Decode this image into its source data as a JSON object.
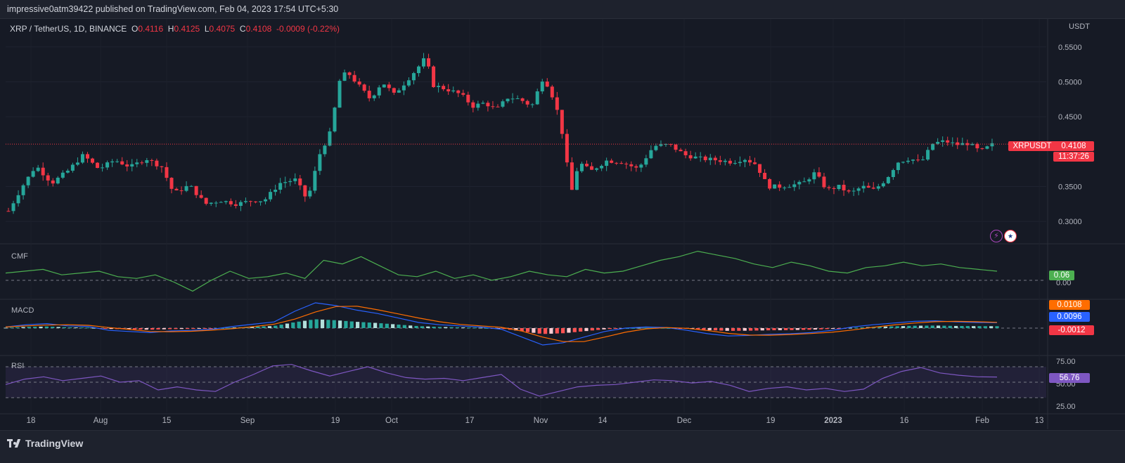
{
  "header": {
    "published": "impressive0atm39422 published on TradingView.com, Feb 04, 2023 17:54 UTC+5:30"
  },
  "legend": {
    "symbol": "XRP / TetherUS, 1D, BINANCE",
    "open_label": "O",
    "open": "0.4116",
    "high_label": "H",
    "high": "0.4125",
    "low_label": "L",
    "low": "0.4075",
    "close_label": "C",
    "close": "0.4108",
    "change": "-0.0009 (-0.22%)"
  },
  "price_axis": {
    "currency": "USDT",
    "ticks": [
      "0.5500",
      "0.5000",
      "0.4500",
      "0.3500",
      "0.3000"
    ]
  },
  "last_price": {
    "symbol": "XRPUSDT",
    "price": "0.4108",
    "countdown": "11:37:26"
  },
  "panes": {
    "cmf": {
      "label": "CMF",
      "value": "0.06",
      "zero": "0.00"
    },
    "macd": {
      "label": "MACD",
      "signal": "0.0108",
      "macd": "0.0096",
      "hist": "-0.0012"
    },
    "rsi": {
      "label": "RSI",
      "value": "56.76",
      "ticks": [
        "75.00",
        "50.00",
        "25.00"
      ]
    }
  },
  "time_axis": [
    "18",
    "Aug",
    "15",
    "Sep",
    "19",
    "Oct",
    "17",
    "Nov",
    "14",
    "Dec",
    "19",
    "2023",
    "16",
    "Feb",
    "13"
  ],
  "footer": {
    "brand": "TradingView"
  },
  "colors": {
    "up": "#26a69a",
    "down": "#f23645",
    "bg": "#131722",
    "cmf": "#4caf50",
    "rsi": "#7e57c2",
    "macd": "#2962ff",
    "signal": "#ff6d00"
  },
  "chart_data": {
    "type": "candlestick",
    "title": "XRP / TetherUS, 1D, BINANCE",
    "ylabel": "USDT",
    "ylim": [
      0.27,
      0.58
    ],
    "anchors": [
      [
        0,
        0.315
      ],
      [
        7,
        0.35
      ],
      [
        14,
        0.38
      ],
      [
        22,
        0.355
      ],
      [
        30,
        0.372
      ],
      [
        38,
        0.395
      ],
      [
        46,
        0.375
      ],
      [
        54,
        0.388
      ],
      [
        62,
        0.378
      ],
      [
        70,
        0.39
      ],
      [
        78,
        0.378
      ],
      [
        84,
        0.34
      ],
      [
        92,
        0.352
      ],
      [
        100,
        0.325
      ],
      [
        108,
        0.33
      ],
      [
        116,
        0.325
      ],
      [
        124,
        0.33
      ],
      [
        130,
        0.33
      ],
      [
        138,
        0.355
      ],
      [
        146,
        0.36
      ],
      [
        152,
        0.33
      ],
      [
        158,
        0.395
      ],
      [
        164,
        0.43
      ],
      [
        168,
        0.5
      ],
      [
        172,
        0.515
      ],
      [
        178,
        0.495
      ],
      [
        184,
        0.475
      ],
      [
        190,
        0.5
      ],
      [
        196,
        0.482
      ],
      [
        202,
        0.5
      ],
      [
        208,
        0.52
      ],
      [
        212,
        0.535
      ],
      [
        216,
        0.495
      ],
      [
        222,
        0.49
      ],
      [
        230,
        0.482
      ],
      [
        236,
        0.465
      ],
      [
        242,
        0.47
      ],
      [
        248,
        0.46
      ],
      [
        254,
        0.478
      ],
      [
        260,
        0.475
      ],
      [
        266,
        0.465
      ],
      [
        272,
        0.508
      ],
      [
        278,
        0.47
      ],
      [
        282,
        0.42
      ],
      [
        286,
        0.34
      ],
      [
        290,
        0.385
      ],
      [
        296,
        0.372
      ],
      [
        304,
        0.387
      ],
      [
        312,
        0.385
      ],
      [
        320,
        0.375
      ],
      [
        328,
        0.408
      ],
      [
        336,
        0.41
      ],
      [
        344,
        0.395
      ],
      [
        352,
        0.39
      ],
      [
        360,
        0.388
      ],
      [
        368,
        0.385
      ],
      [
        374,
        0.39
      ],
      [
        380,
        0.382
      ],
      [
        386,
        0.35
      ],
      [
        392,
        0.35
      ],
      [
        398,
        0.352
      ],
      [
        404,
        0.355
      ],
      [
        410,
        0.37
      ],
      [
        416,
        0.345
      ],
      [
        422,
        0.35
      ],
      [
        428,
        0.34
      ],
      [
        434,
        0.35
      ],
      [
        440,
        0.345
      ],
      [
        446,
        0.36
      ],
      [
        452,
        0.385
      ],
      [
        458,
        0.39
      ],
      [
        464,
        0.385
      ],
      [
        470,
        0.412
      ],
      [
        476,
        0.415
      ],
      [
        482,
        0.41
      ],
      [
        488,
        0.412
      ],
      [
        494,
        0.4
      ],
      [
        500,
        0.41
      ]
    ],
    "last": 0.4108,
    "series": [
      {
        "name": "CMF",
        "values": [
          0.05,
          0.06,
          0.07,
          0.04,
          0.05,
          0.06,
          0.03,
          0.02,
          0.04,
          0.0,
          -0.05,
          0.01,
          0.06,
          0.02,
          0.03,
          0.05,
          0.02,
          0.12,
          0.1,
          0.14,
          0.09,
          0.04,
          0.03,
          0.06,
          0.02,
          0.04,
          0.01,
          0.03,
          0.06,
          0.04,
          0.03,
          0.07,
          0.05,
          0.06,
          0.09,
          0.12,
          0.14,
          0.17,
          0.15,
          0.13,
          0.1,
          0.08,
          0.11,
          0.09,
          0.06,
          0.05,
          0.08,
          0.09,
          0.11,
          0.09,
          0.1,
          0.08,
          0.07,
          0.06
        ]
      },
      {
        "name": "MACD",
        "values": [
          0.002,
          0.006,
          0.008,
          0.004,
          0.003,
          -0.004,
          -0.006,
          -0.008,
          -0.005,
          -0.004,
          -0.002,
          0.003,
          0.007,
          0.011,
          0.03,
          0.045,
          0.04,
          0.032,
          0.026,
          0.018,
          0.01,
          0.006,
          0.004,
          0.002,
          -0.002,
          -0.016,
          -0.03,
          -0.026,
          -0.016,
          -0.006,
          0.0,
          0.002,
          0.001,
          -0.004,
          -0.01,
          -0.014,
          -0.013,
          -0.011,
          -0.01,
          -0.008,
          -0.004,
          0.002,
          0.006,
          0.009,
          0.012,
          0.013,
          0.011,
          0.01,
          0.0096
        ]
      },
      {
        "name": "RSI",
        "values": [
          47,
          54,
          57,
          52,
          55,
          58,
          50,
          52,
          40,
          44,
          40,
          38,
          50,
          60,
          71,
          73,
          65,
          58,
          64,
          70,
          62,
          56,
          54,
          55,
          52,
          56,
          60,
          41,
          32,
          38,
          44,
          46,
          47,
          50,
          53,
          52,
          49,
          51,
          46,
          38,
          42,
          44,
          40,
          42,
          38,
          41,
          55,
          64,
          69,
          62,
          59,
          57,
          56.76
        ]
      }
    ]
  }
}
